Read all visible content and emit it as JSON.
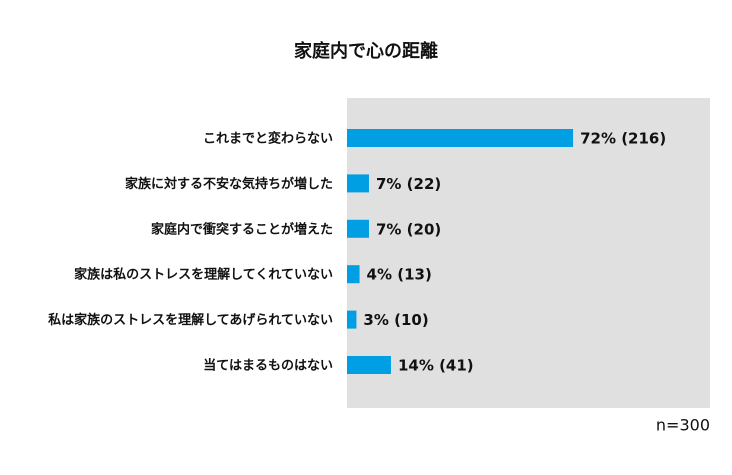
{
  "chart_data": {
    "type": "bar",
    "orientation": "horizontal",
    "title": "家庭内で心の距離",
    "categories": [
      "これまでと変わらない",
      "家族に対する不安な気持ちが増した",
      "家庭内で衝突することが増えた",
      "家族は私のストレスを理解してくれていない",
      "私は家族のストレスを理解してあげられていない",
      "当てはまるものはない"
    ],
    "values": [
      72,
      7,
      7,
      4,
      3,
      14
    ],
    "value_labels": [
      "72% (216)",
      "7% (22)",
      "7% (20)",
      "4% (13)",
      "3% (10)",
      "14% (41)"
    ],
    "color": "#009fe3",
    "annotation": "n=300"
  }
}
